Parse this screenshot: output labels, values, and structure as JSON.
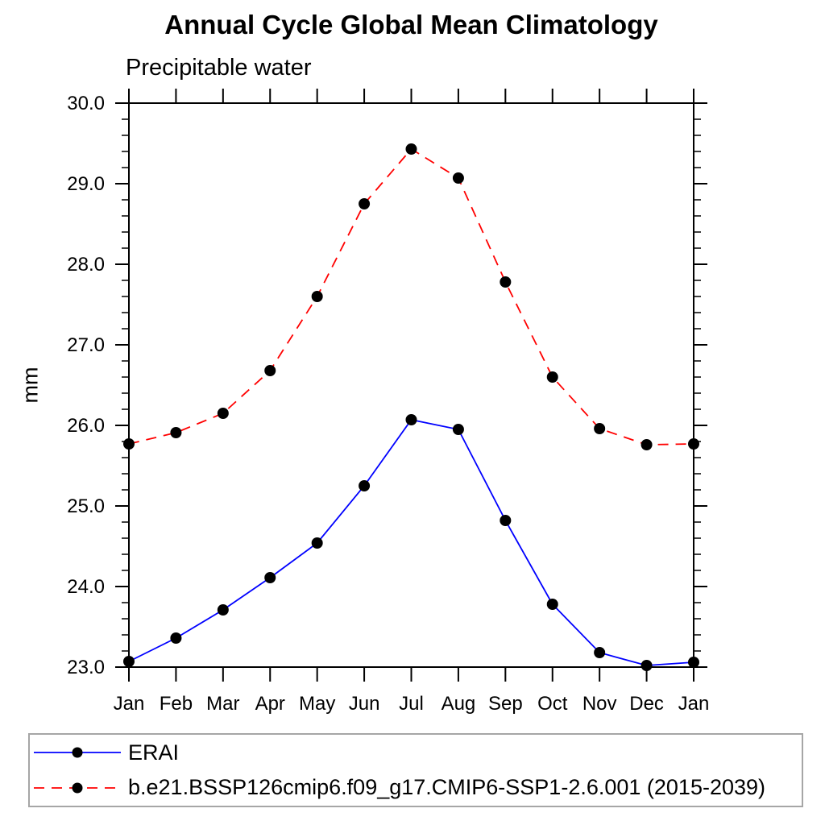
{
  "chart_data": {
    "type": "line",
    "title": "Annual Cycle Global Mean Climatology",
    "subtitle": "Precipitable water",
    "xlabel": "",
    "ylabel": "mm",
    "categories": [
      "Jan",
      "Feb",
      "Mar",
      "Apr",
      "May",
      "Jun",
      "Jul",
      "Aug",
      "Sep",
      "Oct",
      "Nov",
      "Dec",
      "Jan"
    ],
    "ylim": [
      23.0,
      30.0
    ],
    "y_major_tick_labels": [
      "23.0",
      "24.0",
      "25.0",
      "26.0",
      "27.0",
      "28.0",
      "29.0",
      "30.0"
    ],
    "y_minor_step": 0.2,
    "grid": false,
    "legend_position": "bottom-box",
    "marker": "filled-circle",
    "marker_color": "#000000",
    "axis_color": "#000000",
    "series": [
      {
        "name": "ERAI",
        "color": "#0000ff",
        "style": "solid",
        "values": [
          23.07,
          23.36,
          23.71,
          24.11,
          24.54,
          25.25,
          26.07,
          25.95,
          24.82,
          23.78,
          23.18,
          23.02,
          23.06
        ]
      },
      {
        "name": "b.e21.BSSP126cmip6.f09_g17.CMIP6-SSP1-2.6.001 (2015-2039)",
        "color": "#ff0000",
        "style": "dashed",
        "values": [
          25.77,
          25.91,
          26.15,
          26.68,
          27.6,
          28.75,
          29.43,
          29.07,
          27.78,
          26.6,
          25.96,
          25.76,
          25.77
        ]
      }
    ]
  }
}
